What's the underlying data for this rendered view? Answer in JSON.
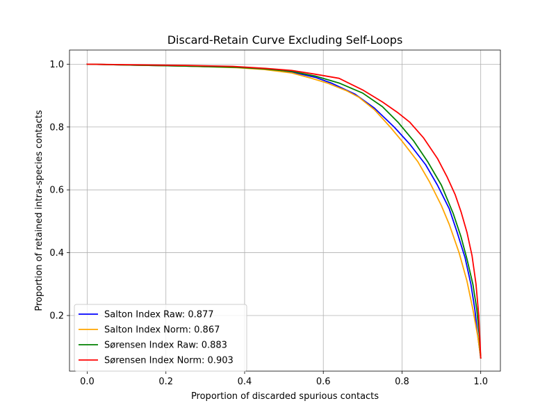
{
  "chart_data": {
    "type": "line",
    "title": "Discard-Retain Curve Excluding Self-Loops",
    "xlabel": "Proportion of discarded spurious contacts",
    "ylabel": "Proportion of retained intra-species contacts",
    "xlim": [
      -0.045,
      1.05
    ],
    "ylim": [
      0.023,
      1.045
    ],
    "xticks": [
      0.0,
      0.2,
      0.4,
      0.6,
      0.8,
      1.0
    ],
    "xtick_labels": [
      "0.0",
      "0.2",
      "0.4",
      "0.6",
      "0.8",
      "1.0"
    ],
    "yticks": [
      0.2,
      0.4,
      0.6,
      0.8,
      1.0
    ],
    "ytick_labels": [
      "0.2",
      "0.4",
      "0.6",
      "0.8",
      "1.0"
    ],
    "grid": true,
    "legend_position": "lower-left",
    "series": [
      {
        "name": "Salton Index Raw: 0.877",
        "color": "#0000ff",
        "x": [
          0.0,
          0.12,
          0.25,
          0.38,
          0.45,
          0.52,
          0.58,
          0.62,
          0.68,
          0.73,
          0.78,
          0.82,
          0.86,
          0.89,
          0.92,
          0.94,
          0.96,
          0.975,
          0.985,
          0.992,
          1.0
        ],
        "y": [
          1.0,
          0.997,
          0.994,
          0.99,
          0.985,
          0.975,
          0.958,
          0.94,
          0.905,
          0.86,
          0.8,
          0.745,
          0.68,
          0.615,
          0.54,
          0.465,
          0.385,
          0.3,
          0.22,
          0.14,
          0.065
        ]
      },
      {
        "name": "Salton Index Norm: 0.867",
        "color": "#ffa500",
        "x": [
          0.0,
          0.12,
          0.25,
          0.38,
          0.45,
          0.52,
          0.57,
          0.61,
          0.66,
          0.69,
          0.73,
          0.77,
          0.8,
          0.84,
          0.87,
          0.9,
          0.92,
          0.945,
          0.965,
          0.98,
          0.993,
          1.0
        ],
        "y": [
          1.0,
          0.997,
          0.994,
          0.989,
          0.983,
          0.972,
          0.955,
          0.94,
          0.915,
          0.895,
          0.855,
          0.8,
          0.755,
          0.69,
          0.625,
          0.55,
          0.49,
          0.4,
          0.31,
          0.22,
          0.13,
          0.065
        ]
      },
      {
        "name": "Sørensen Index Raw: 0.883",
        "color": "#008000",
        "x": [
          0.0,
          0.12,
          0.25,
          0.38,
          0.45,
          0.52,
          0.58,
          0.64,
          0.7,
          0.75,
          0.79,
          0.83,
          0.865,
          0.9,
          0.93,
          0.95,
          0.965,
          0.98,
          0.99,
          0.996,
          1.0
        ],
        "y": [
          1.0,
          0.997,
          0.994,
          0.99,
          0.985,
          0.977,
          0.962,
          0.94,
          0.908,
          0.865,
          0.815,
          0.755,
          0.69,
          0.615,
          0.525,
          0.45,
          0.38,
          0.3,
          0.22,
          0.14,
          0.065
        ]
      },
      {
        "name": "Sørensen Index Norm: 0.903",
        "color": "#ff0000",
        "x": [
          0.0,
          0.12,
          0.25,
          0.37,
          0.45,
          0.52,
          0.58,
          0.64,
          0.7,
          0.75,
          0.79,
          0.82,
          0.855,
          0.89,
          0.915,
          0.935,
          0.95,
          0.965,
          0.978,
          0.988,
          0.995,
          1.0
        ],
        "y": [
          1.0,
          0.998,
          0.996,
          0.993,
          0.987,
          0.98,
          0.968,
          0.955,
          0.918,
          0.88,
          0.845,
          0.815,
          0.765,
          0.7,
          0.64,
          0.585,
          0.53,
          0.465,
          0.39,
          0.3,
          0.2,
          0.065
        ]
      }
    ]
  }
}
